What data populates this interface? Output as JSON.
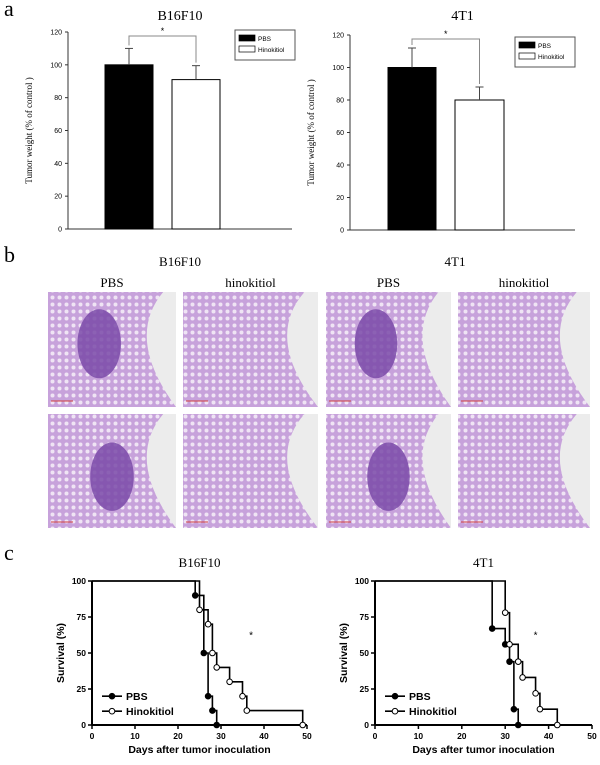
{
  "panel_labels": [
    "a",
    "b",
    "c"
  ],
  "panel_b": {
    "groups": [
      {
        "title": "B16F10",
        "conditions": [
          "PBS",
          "hinokitiol"
        ]
      },
      {
        "title": "4T1",
        "conditions": [
          "PBS",
          "hinokitiol"
        ]
      }
    ],
    "image_description_colors": {
      "tissue": "#c9a6dc",
      "tumor": "#7a4aa8",
      "background": "#ececec"
    }
  },
  "chart_data": [
    {
      "type": "bar",
      "title": "B16F10",
      "ylabel": "Tumor weight (% of control )",
      "categories": [
        "PBS",
        "Hinokitiol"
      ],
      "values": [
        100,
        91
      ],
      "errors": [
        10,
        8.5
      ],
      "ylim": [
        0,
        120
      ],
      "yticks": [
        0,
        20,
        40,
        60,
        80,
        100,
        120
      ],
      "significance": "*",
      "legend": [
        "PBS",
        "Hinokitiol"
      ],
      "legend_placement": "top-right",
      "colors": [
        "#000000",
        "#ffffff"
      ]
    },
    {
      "type": "bar",
      "title": "4T1",
      "ylabel": "Tumor weight (% of control )",
      "categories": [
        "PBS",
        "Hinokitiol"
      ],
      "values": [
        100,
        80
      ],
      "errors": [
        12,
        8
      ],
      "ylim": [
        0,
        120
      ],
      "yticks": [
        0,
        20,
        40,
        60,
        80,
        100,
        120
      ],
      "significance": "*",
      "legend": [
        "PBS",
        "Hinokitiol"
      ],
      "legend_placement": "top-right",
      "colors": [
        "#000000",
        "#ffffff"
      ]
    },
    {
      "type": "line",
      "subtype": "kaplan-meier",
      "title": "B16F10",
      "xlabel": "Days after tumor inoculation",
      "ylabel": "Survival (%)",
      "xlim": [
        0,
        50
      ],
      "ylim": [
        0,
        100
      ],
      "xticks": [
        0,
        10,
        20,
        30,
        40,
        50
      ],
      "yticks": [
        0,
        25,
        50,
        75,
        100
      ],
      "significance": "*",
      "legend_placement": "bottom-left",
      "series": [
        {
          "name": "PBS",
          "marker": "filled-circle",
          "x": [
            24,
            26,
            27,
            28,
            29
          ],
          "y": [
            90,
            50,
            20,
            10,
            0
          ]
        },
        {
          "name": "Hinokitiol",
          "marker": "open-circle",
          "x": [
            25,
            27,
            28,
            29,
            32,
            35,
            36,
            49
          ],
          "y": [
            80,
            70,
            50,
            40,
            30,
            20,
            10,
            0
          ]
        }
      ]
    },
    {
      "type": "line",
      "subtype": "kaplan-meier",
      "title": "4T1",
      "xlabel": "Days after tumor inoculation",
      "ylabel": "Survival (%)",
      "xlim": [
        0,
        50
      ],
      "ylim": [
        0,
        100
      ],
      "xticks": [
        0,
        10,
        20,
        30,
        40,
        50
      ],
      "yticks": [
        0,
        25,
        50,
        75,
        100
      ],
      "significance": "*",
      "legend_placement": "bottom-left",
      "series": [
        {
          "name": "PBS",
          "marker": "filled-circle",
          "x": [
            27,
            30,
            31,
            32,
            33
          ],
          "y": [
            67,
            56,
            44,
            11,
            0
          ]
        },
        {
          "name": "Hinokitiol",
          "marker": "open-circle",
          "x": [
            30,
            31,
            33,
            34,
            37,
            38,
            42
          ],
          "y": [
            78,
            56,
            44,
            33,
            22,
            11,
            0
          ]
        }
      ]
    }
  ]
}
